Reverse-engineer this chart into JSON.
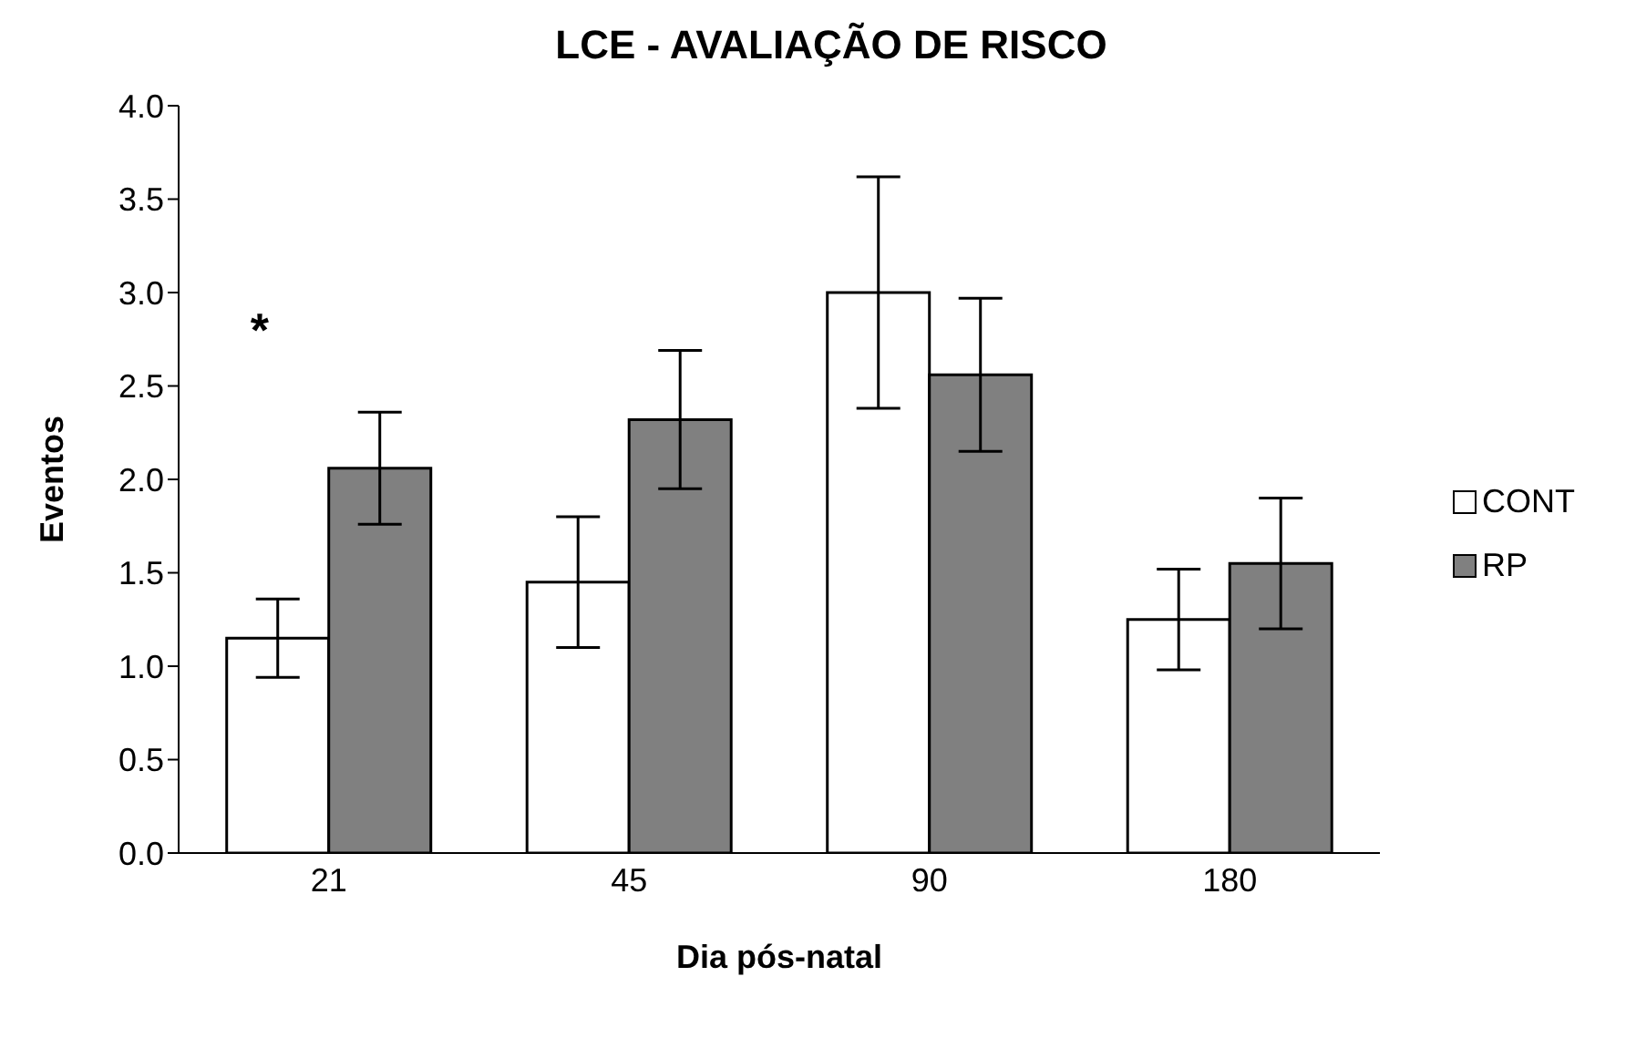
{
  "chart_data": {
    "type": "bar",
    "title": "LCE - AVALIAÇÃO DE RISCO",
    "xlabel": "Dia pós-natal",
    "ylabel": "Eventos",
    "categories": [
      "21",
      "45",
      "90",
      "180"
    ],
    "series": [
      {
        "name": "CONT",
        "color": "#ffffff",
        "values": [
          1.15,
          1.45,
          3.0,
          1.25
        ],
        "errors": [
          0.21,
          0.35,
          0.62,
          0.27
        ]
      },
      {
        "name": "RP",
        "color": "#808080",
        "values": [
          2.06,
          2.32,
          2.56,
          1.55
        ],
        "errors": [
          0.3,
          0.37,
          0.41,
          0.35
        ]
      }
    ],
    "ylim": [
      0,
      4
    ],
    "yticks": [
      {
        "value": 0,
        "label": "0.0"
      },
      {
        "value": 0.5,
        "label": "0.5"
      },
      {
        "value": 1,
        "label": "1.0"
      },
      {
        "value": 1.5,
        "label": "1.5"
      },
      {
        "value": 2,
        "label": "2.0"
      },
      {
        "value": 2.5,
        "label": "2.5"
      },
      {
        "value": 3,
        "label": "3.0"
      },
      {
        "value": 3.5,
        "label": "3.5"
      },
      {
        "value": 4,
        "label": "4.0"
      }
    ],
    "annotations": [
      "*"
    ],
    "grid": false,
    "legend": "right"
  }
}
